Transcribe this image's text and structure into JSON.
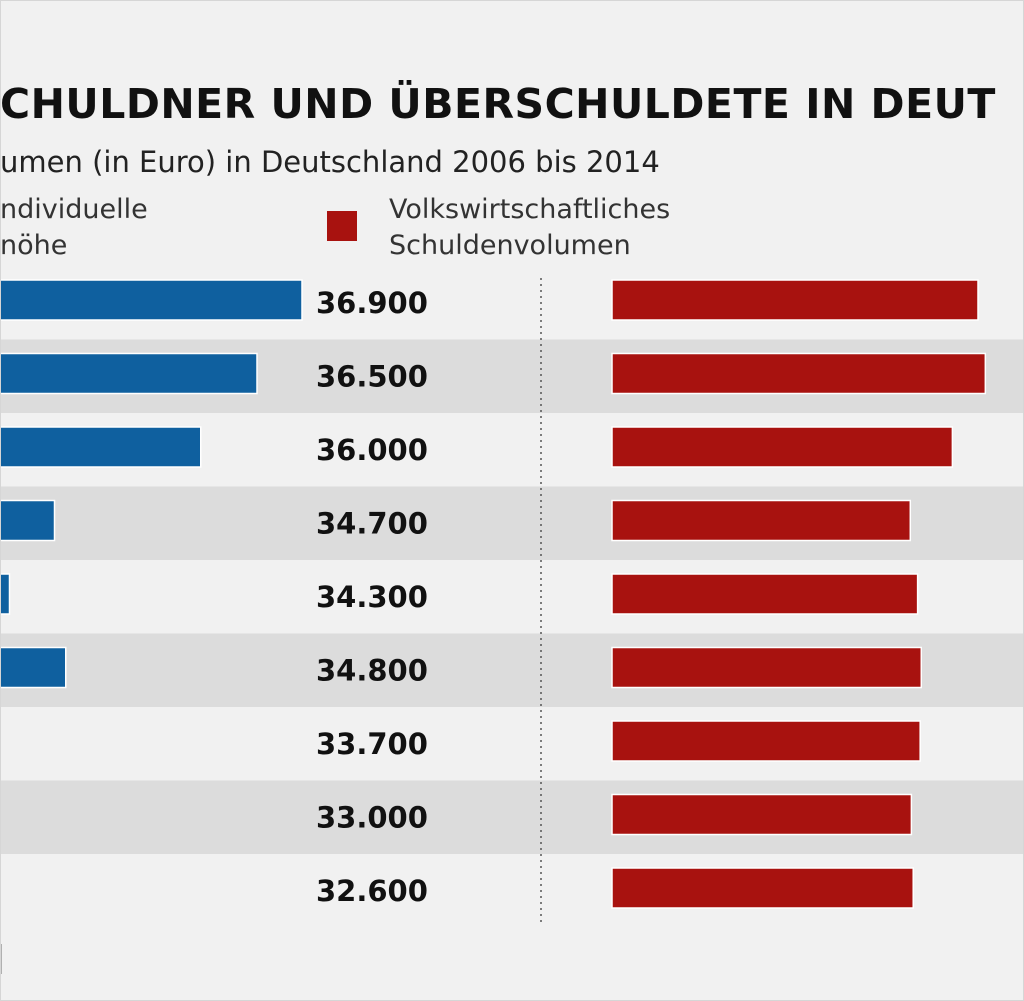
{
  "chart_data": {
    "type": "bar",
    "title": "CHULDNER UND ÜBERSCHULDETE IN DEUT",
    "subtitle": "umen (in Euro) in Deutschland 2006 bis 2014",
    "legend": [
      {
        "name_lines": [
          "ndividuelle",
          "nöhe"
        ],
        "color": "#0f609f"
      },
      {
        "name_lines": [
          "Volkswirtschaftliches",
          "Schuldenvolumen"
        ],
        "color": "#a8120f"
      }
    ],
    "series": [
      {
        "name": "individuelle Schuldenhöhe",
        "color": "#0f609f",
        "values": [
          36900,
          36500,
          36000,
          34700,
          34300,
          34800,
          33700,
          33000,
          32600
        ],
        "labels": [
          "36.900",
          "36.500",
          "36.000",
          "34.700",
          "34.300",
          "34.800",
          "33.700",
          "33.000",
          "32.600"
        ]
      },
      {
        "name": "Volkswirtschaftliches Schuldenvolumen",
        "color": "#a8120f",
        "relative_values": [
          1.0,
          1.02,
          0.93,
          0.815,
          0.835,
          0.845,
          0.842,
          0.818,
          0.823
        ]
      }
    ],
    "row_stripe_color": "#dcdcdc",
    "background_color": "#f1f1f1"
  }
}
